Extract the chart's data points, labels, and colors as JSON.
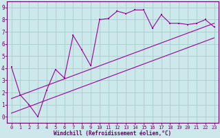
{
  "xlabel": "Windchill (Refroidissement éolien,°C)",
  "bg_color": "#cce8ea",
  "grid_color": "#aacccc",
  "line_color": "#990099",
  "spine_color": "#660066",
  "xlim": [
    -0.5,
    23.5
  ],
  "ylim": [
    -0.5,
    9.5
  ],
  "xticks": [
    0,
    1,
    2,
    3,
    4,
    5,
    6,
    7,
    8,
    9,
    10,
    11,
    12,
    13,
    14,
    15,
    16,
    17,
    18,
    19,
    20,
    21,
    22,
    23
  ],
  "yticks": [
    0,
    1,
    2,
    3,
    4,
    5,
    6,
    7,
    8,
    9
  ],
  "scatter_x": [
    0,
    1,
    2,
    3,
    4,
    5,
    6,
    7,
    8,
    9,
    10,
    11,
    12,
    13,
    14,
    15,
    16,
    17,
    18,
    19,
    20,
    21,
    22,
    23
  ],
  "scatter_y": [
    4.1,
    1.8,
    1.0,
    0.0,
    2.2,
    3.9,
    3.2,
    6.7,
    5.5,
    4.2,
    8.0,
    8.1,
    8.7,
    8.5,
    8.8,
    8.8,
    7.3,
    8.4,
    7.7,
    7.7,
    7.6,
    7.7,
    8.0,
    7.4
  ],
  "line1_x": [
    0,
    23
  ],
  "line1_y": [
    0.3,
    6.5
  ],
  "line2_x": [
    0,
    23
  ],
  "line2_y": [
    1.5,
    7.7
  ]
}
